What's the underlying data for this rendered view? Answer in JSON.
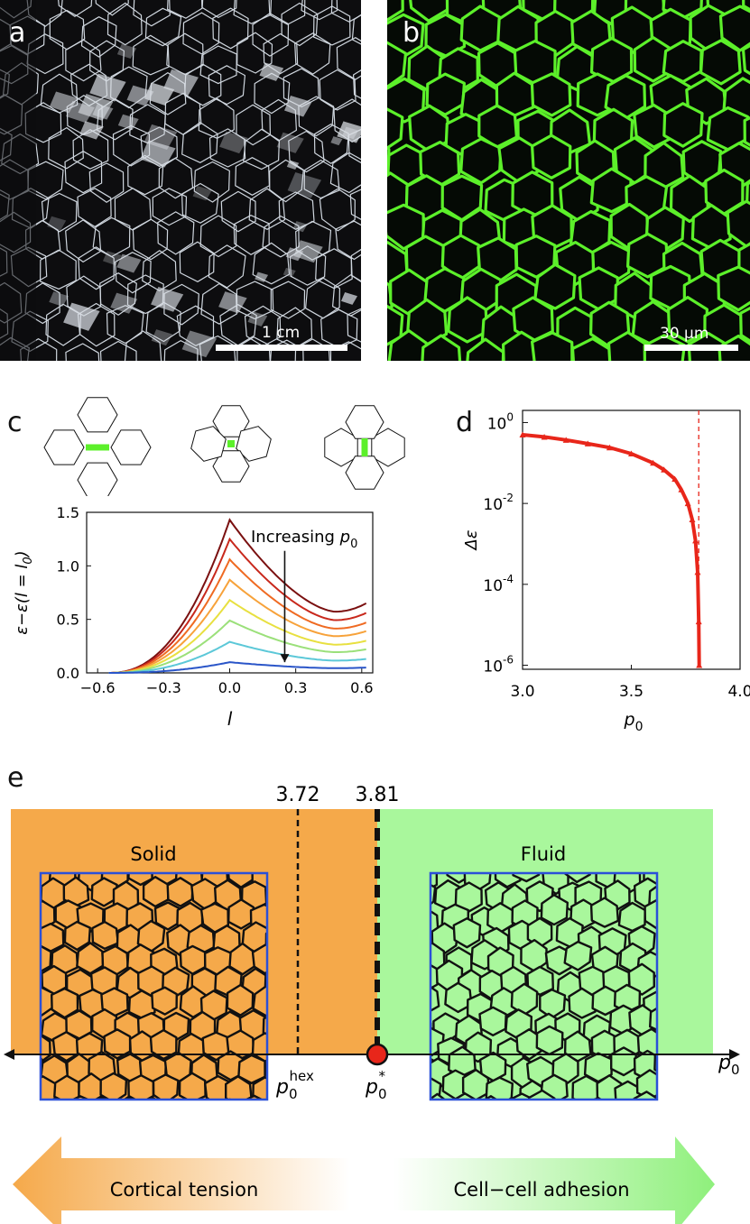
{
  "panels": {
    "a": {
      "letter": "a",
      "scale_bar": "1 cm"
    },
    "b": {
      "letter": "b",
      "scale_bar": "30 μm"
    },
    "c": {
      "letter": "c"
    },
    "d": {
      "letter": "d"
    },
    "e": {
      "letter": "e"
    }
  },
  "colors": {
    "solid_bg": "#f5a94a",
    "fluid_bg": "#a9f79c",
    "cell_border_b": "#5cf02a",
    "box_border": "#2b50d8",
    "red": "#e8261a"
  },
  "chart_data": [
    {
      "type": "line",
      "panel": "c",
      "xlabel": "l",
      "ylabel": "ε−ε(l = l0)",
      "xticks": [
        "−0.6",
        "−0.3",
        "0.0",
        "0.3",
        "0.6"
      ],
      "yticks": [
        "0.0",
        "0.5",
        "1.0",
        "1.5"
      ],
      "xlim": [
        -0.65,
        0.65
      ],
      "ylim": [
        0,
        1.5
      ],
      "annotation": "Increasing p0",
      "series": [
        {
          "color": "#7a1010",
          "peak": 1.43,
          "end": 0.65
        },
        {
          "color": "#c8281c",
          "peak": 1.25,
          "end": 0.56
        },
        {
          "color": "#ef6a22",
          "peak": 1.06,
          "end": 0.47
        },
        {
          "color": "#f7a23a",
          "peak": 0.87,
          "end": 0.39
        },
        {
          "color": "#e8e040",
          "peak": 0.68,
          "end": 0.3
        },
        {
          "color": "#9be07a",
          "peak": 0.49,
          "end": 0.22
        },
        {
          "color": "#5cc8d8",
          "peak": 0.29,
          "end": 0.13
        },
        {
          "color": "#2a55c8",
          "peak": 0.1,
          "end": 0.05
        }
      ]
    },
    {
      "type": "scatter",
      "panel": "d",
      "xlabel": "p0",
      "ylabel": "Δε",
      "xticks": [
        "3.0",
        "3.5",
        "4.0"
      ],
      "yticks": [
        "10^0",
        "10^-2",
        "10^-4",
        "10^-6"
      ],
      "xlim": [
        3.0,
        4.0
      ],
      "ylim_log10": [
        -6.1,
        0.3
      ],
      "dashed_line_x": 3.81,
      "x": [
        3.0,
        3.1,
        3.2,
        3.3,
        3.4,
        3.5,
        3.6,
        3.65,
        3.7,
        3.73,
        3.76,
        3.78,
        3.795,
        3.805,
        3.81,
        3.812
      ],
      "y": [
        0.5,
        0.44,
        0.37,
        0.3,
        0.24,
        0.17,
        0.1,
        0.068,
        0.04,
        0.022,
        0.01,
        0.004,
        0.0012,
        0.0002,
        1.2e-05,
        1e-06
      ]
    }
  ],
  "phase": {
    "solid_label": "Solid",
    "fluid_label": "Fluid",
    "v_372": "3.72",
    "v_381": "3.81",
    "p_hex_base": "p",
    "p_hex_sub": "0",
    "p_hex_sup": "hex",
    "p_star_base": "p",
    "p_star_sub": "0",
    "p_star_sup": "*",
    "axis_label_base": "p",
    "axis_label_sub": "0",
    "arrow_left": "Cortical tension",
    "arrow_right": "Cell−cell adhesion"
  },
  "c_annotation": {
    "text": "Increasing ",
    "base": "p",
    "sub": "0"
  },
  "c_ylabel": {
    "t1": "ε−ε(",
    "l": "l",
    "t2": " = ",
    "l0": "l",
    "sub": "0",
    "t3": ")"
  },
  "c_xlabel": "l",
  "d_ylabel": "Δε",
  "d_xlabel": {
    "base": "p",
    "sub": "0"
  }
}
